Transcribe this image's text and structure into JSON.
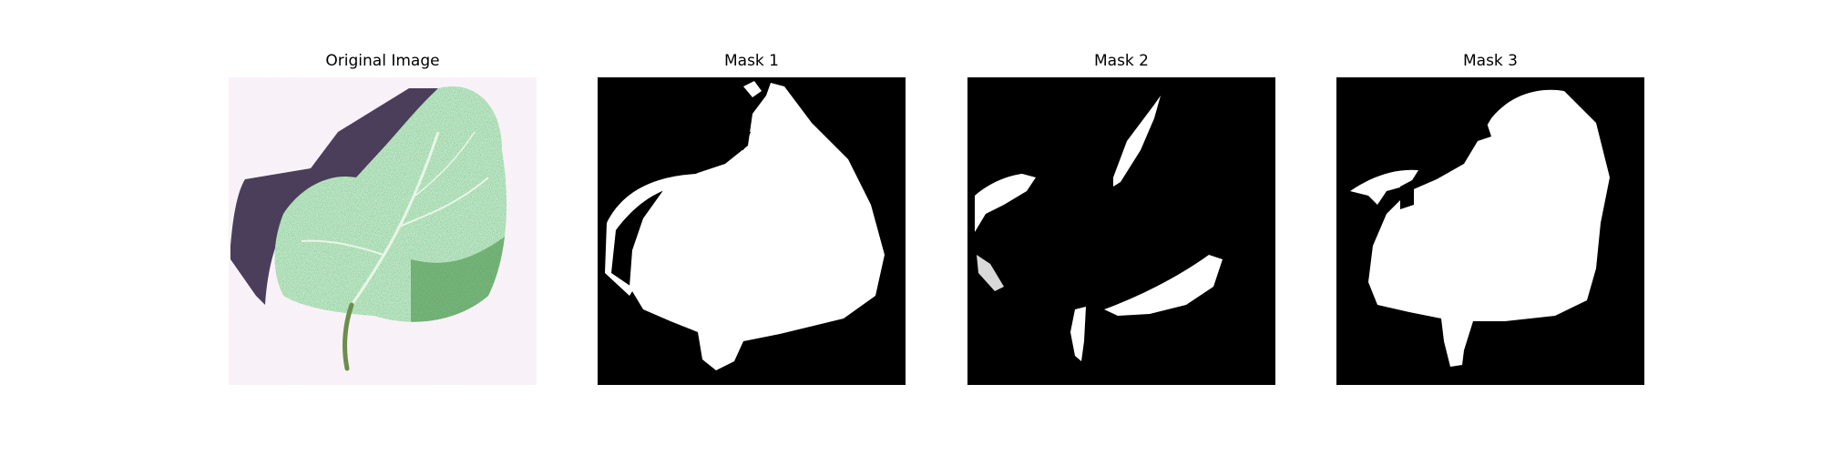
{
  "panels": [
    {
      "title": "Original Image",
      "kind": "photo"
    },
    {
      "title": "Mask 1",
      "kind": "mask"
    },
    {
      "title": "Mask 2",
      "kind": "mask"
    },
    {
      "title": "Mask 3",
      "kind": "mask"
    }
  ],
  "colors": {
    "mask_background": "#000000",
    "mask_foreground": "#ffffff",
    "leaf_green": "#9fd6a8",
    "shadow_purple": "#4a3e5a"
  }
}
